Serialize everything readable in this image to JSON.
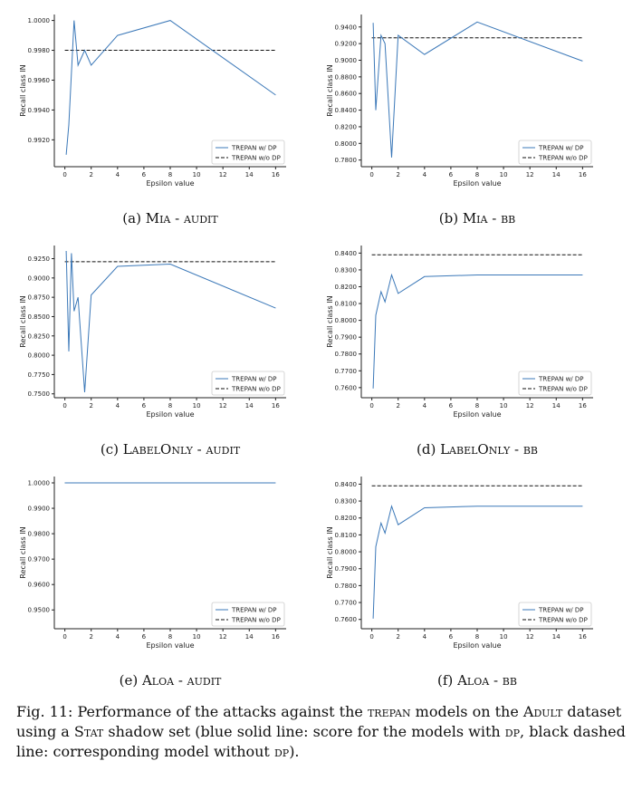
{
  "legend": {
    "dp": "TREPAN w/ DP",
    "nodp": "TREPAN w/o DP"
  },
  "colors": {
    "dp": "#3b78b8",
    "nodp": "#111111"
  },
  "caption": {
    "lead": "Fig. 11: Performance of the attacks against the ",
    "trepan": "trepan",
    "mid1": " models on the ",
    "adult": "Adult",
    "mid2": " dataset using a ",
    "stat": "Stat",
    "mid3": " shadow set (blue solid line: score for the models with ",
    "dp1": "dp",
    "mid4": ", black dashed line: corresponding model without ",
    "dp2": "dp",
    "end": ")."
  },
  "chart_data": [
    {
      "type": "line",
      "id": "a",
      "subcaption": {
        "label": "(a) ",
        "attack": "Mia",
        "sep": " - ",
        "setting": "audit"
      },
      "xlabel": "Epsilon value",
      "ylabel": "Recall class IN",
      "xlim": [
        -0.8,
        16.8
      ],
      "ylim": [
        0.9902,
        1.0004
      ],
      "xticks": [
        0,
        2,
        4,
        6,
        8,
        10,
        12,
        14,
        16
      ],
      "yticks": [
        "0.9920",
        "0.9940",
        "0.9960",
        "0.9980",
        "1.0000"
      ],
      "series": [
        {
          "name": "TREPAN w/ DP",
          "style": "solid",
          "x": [
            0.1,
            0.3,
            0.7,
            1.0,
            1.5,
            2.0,
            4.0,
            8.0,
            16.0
          ],
          "y": [
            0.991,
            0.993,
            1.0,
            0.997,
            0.998,
            0.997,
            0.999,
            1.0,
            0.995
          ]
        },
        {
          "name": "TREPAN w/o DP",
          "style": "dashed",
          "x": [
            0,
            16
          ],
          "y": [
            0.998,
            0.998
          ]
        }
      ],
      "legend": "lower-right"
    },
    {
      "type": "line",
      "id": "b",
      "subcaption": {
        "label": "(b) ",
        "attack": "Mia",
        "sep": " - ",
        "setting": "bb"
      },
      "xlabel": "Epsilon value",
      "ylabel": "Recall class IN",
      "xlim": [
        -0.8,
        16.8
      ],
      "ylim": [
        0.772,
        0.955
      ],
      "xticks": [
        0,
        2,
        4,
        6,
        8,
        10,
        12,
        14,
        16
      ],
      "yticks": [
        "0.7800",
        "0.8000",
        "0.8200",
        "0.8400",
        "0.8600",
        "0.8800",
        "0.9000",
        "0.9200",
        "0.9400"
      ],
      "series": [
        {
          "name": "TREPAN w/ DP",
          "style": "solid",
          "x": [
            0.1,
            0.3,
            0.7,
            1.0,
            1.5,
            2.0,
            4.0,
            8.0,
            16.0
          ],
          "y": [
            0.945,
            0.84,
            0.93,
            0.92,
            0.783,
            0.93,
            0.907,
            0.946,
            0.899
          ]
        },
        {
          "name": "TREPAN w/o DP",
          "style": "dashed",
          "x": [
            0,
            16
          ],
          "y": [
            0.927,
            0.927
          ]
        }
      ],
      "legend": "lower-right"
    },
    {
      "type": "line",
      "id": "c",
      "subcaption": {
        "label": "(c) ",
        "attack": "LabelOnly",
        "sep": " - ",
        "setting": "audit"
      },
      "xlabel": "Epsilon value",
      "ylabel": "Recall class IN",
      "xlim": [
        -0.8,
        16.8
      ],
      "ylim": [
        0.745,
        0.942
      ],
      "xticks": [
        0,
        2,
        4,
        6,
        8,
        10,
        12,
        14,
        16
      ],
      "yticks": [
        "0.7500",
        "0.7750",
        "0.8000",
        "0.8250",
        "0.8500",
        "0.8750",
        "0.9000",
        "0.9250"
      ],
      "series": [
        {
          "name": "TREPAN w/ DP",
          "style": "solid",
          "x": [
            0.1,
            0.3,
            0.5,
            0.7,
            1.0,
            1.5,
            2.0,
            4.0,
            8.0,
            16.0
          ],
          "y": [
            0.935,
            0.805,
            0.932,
            0.857,
            0.875,
            0.752,
            0.878,
            0.915,
            0.918,
            0.861
          ]
        },
        {
          "name": "TREPAN w/o DP",
          "style": "dashed",
          "x": [
            0,
            16
          ],
          "y": [
            0.921,
            0.921
          ]
        }
      ],
      "legend": "lower-right"
    },
    {
      "type": "line",
      "id": "d",
      "subcaption": {
        "label": "(d) ",
        "attack": "LabelOnly",
        "sep": " - ",
        "setting": "bb"
      },
      "xlabel": "Epsilon value",
      "ylabel": "Recall class IN",
      "xlim": [
        -0.8,
        16.8
      ],
      "ylim": [
        0.754,
        0.8445
      ],
      "xticks": [
        0,
        2,
        4,
        6,
        8,
        10,
        12,
        14,
        16
      ],
      "yticks": [
        "0.7600",
        "0.7700",
        "0.7800",
        "0.7900",
        "0.8000",
        "0.8100",
        "0.8200",
        "0.8300",
        "0.8400"
      ],
      "series": [
        {
          "name": "TREPAN w/ DP",
          "style": "solid",
          "x": [
            0.1,
            0.3,
            0.7,
            1.0,
            1.5,
            2.0,
            4.0,
            8.0,
            16.0
          ],
          "y": [
            0.7595,
            0.803,
            0.817,
            0.811,
            0.827,
            0.816,
            0.826,
            0.827,
            0.827
          ]
        },
        {
          "name": "TREPAN w/o DP",
          "style": "dashed",
          "x": [
            0,
            16
          ],
          "y": [
            0.839,
            0.839
          ]
        }
      ],
      "legend": "lower-right"
    },
    {
      "type": "line",
      "id": "e",
      "subcaption": {
        "label": "(e) ",
        "attack": "Aloa",
        "sep": " - ",
        "setting": "audit"
      },
      "xlabel": "Epsilon value",
      "ylabel": "Recall class IN",
      "xlim": [
        -0.8,
        16.8
      ],
      "ylim": [
        0.9426,
        1.0025
      ],
      "xticks": [
        0,
        2,
        4,
        6,
        8,
        10,
        12,
        14,
        16
      ],
      "yticks": [
        "0.9500",
        "0.9600",
        "0.9700",
        "0.9800",
        "0.9900",
        "1.0000"
      ],
      "series": [
        {
          "name": "TREPAN w/ DP",
          "style": "solid",
          "x": [
            0,
            16
          ],
          "y": [
            1.0,
            1.0
          ]
        },
        {
          "name": "TREPAN w/o DP",
          "style": "dashed",
          "x": [
            0,
            16
          ],
          "y": [
            1.0,
            1.0
          ]
        }
      ],
      "legend": "lower-right"
    },
    {
      "type": "line",
      "id": "f",
      "subcaption": {
        "label": "(f) ",
        "attack": "Aloa",
        "sep": " - ",
        "setting": "bb"
      },
      "xlabel": "Epsilon value",
      "ylabel": "Recall class IN",
      "xlim": [
        -0.8,
        16.8
      ],
      "ylim": [
        0.7545,
        0.8445
      ],
      "xticks": [
        0,
        2,
        4,
        6,
        8,
        10,
        12,
        14,
        16
      ],
      "yticks": [
        "0.7600",
        "0.7700",
        "0.7800",
        "0.7900",
        "0.8000",
        "0.8100",
        "0.8200",
        "0.8300",
        "0.8400"
      ],
      "series": [
        {
          "name": "TREPAN w/ DP",
          "style": "solid",
          "x": [
            0.1,
            0.3,
            0.7,
            1.0,
            1.5,
            2.0,
            4.0,
            8.0,
            16.0
          ],
          "y": [
            0.7605,
            0.803,
            0.817,
            0.811,
            0.827,
            0.816,
            0.826,
            0.827,
            0.827
          ]
        },
        {
          "name": "TREPAN w/o DP",
          "style": "dashed",
          "x": [
            0,
            16
          ],
          "y": [
            0.839,
            0.839
          ]
        }
      ],
      "legend": "lower-right"
    }
  ]
}
